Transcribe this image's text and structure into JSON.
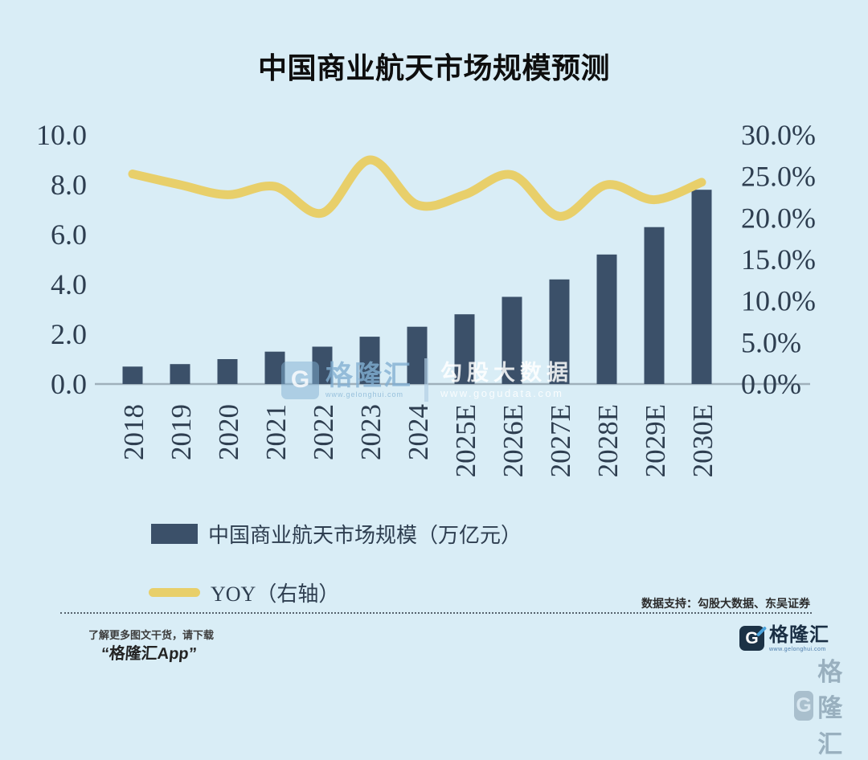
{
  "title": "中国商业航天市场规模预测",
  "chart_data": {
    "type": "bar",
    "categories": [
      "2018",
      "2019",
      "2020",
      "2021",
      "2022",
      "2023",
      "2024",
      "2025E",
      "2026E",
      "2027E",
      "2028E",
      "2029E",
      "2030E"
    ],
    "series": [
      {
        "name": "中国商业航天市场规模（万亿元）",
        "type": "bar",
        "axis": "left",
        "values": [
          0.7,
          0.8,
          1.0,
          1.3,
          1.5,
          1.9,
          2.3,
          2.8,
          3.5,
          4.2,
          5.2,
          6.3,
          7.8
        ]
      },
      {
        "name": "YOY（右轴）",
        "type": "line",
        "axis": "right",
        "values": [
          25.3,
          24.0,
          22.8,
          23.8,
          20.6,
          27.0,
          21.6,
          22.8,
          25.2,
          20.2,
          24.0,
          22.2,
          24.3
        ]
      }
    ],
    "left_axis": {
      "min": 0,
      "max": 10,
      "ticks": [
        "10.0",
        "8.0",
        "6.0",
        "4.0",
        "2.0",
        "0.0"
      ]
    },
    "right_axis": {
      "min": 0,
      "max": 30,
      "ticks": [
        "30.0%",
        "25.0%",
        "20.0%",
        "15.0%",
        "10.0%",
        "5.0%",
        "0.0%"
      ]
    },
    "grid": false,
    "legend_position": "bottom-left",
    "x_label_rotation": 90
  },
  "legend": {
    "items": [
      {
        "label": "中国商业航天市场规模（万亿元）",
        "swatch": "bar"
      },
      {
        "label": "YOY（右轴）",
        "swatch": "line"
      }
    ]
  },
  "watermark_center": {
    "brand_name": "格隆汇",
    "brand_url": "www.gelonghui.com",
    "partner_name": "勾股大数据",
    "partner_url": "www.gogudata.com"
  },
  "footer": {
    "data_support": "数据支持：勾股大数据、东吴证券",
    "promo_line1": "了解更多图文干货，请下载",
    "promo_line2": "“格隆汇App”",
    "logo_name": "格隆汇",
    "logo_url": "www.gelonghui.com"
  },
  "icons": {
    "logo_glyph": "G"
  },
  "colors": {
    "background": "#d9edf6",
    "bar": "#3b5069",
    "line": "#e8cf6a",
    "axis_text": "#2e3e50",
    "baseline": "#9fb0bb",
    "title": "#0e0e0e"
  }
}
